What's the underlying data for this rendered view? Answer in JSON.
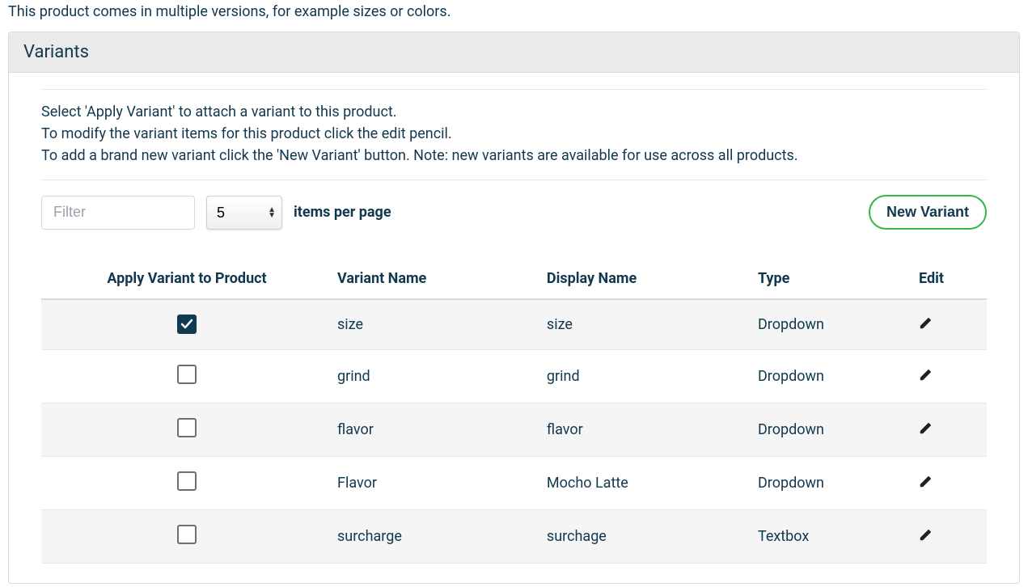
{
  "intro": "This product comes in multiple versions, for example sizes or colors.",
  "panel": {
    "title": "Variants",
    "instructions": {
      "line1": "Select 'Apply Variant' to attach a variant to this product.",
      "line2": "To modify the variant items for this product click the edit pencil.",
      "line3": "To add a brand new variant click the 'New Variant' button. Note: new variants are available for use across all products."
    },
    "controls": {
      "filter_placeholder": "Filter",
      "items_per_page_value": "5",
      "items_per_page_label": "items per page",
      "new_variant_label": "New Variant"
    },
    "table": {
      "headers": {
        "apply": "Apply Variant to Product",
        "variant_name": "Variant Name",
        "display_name": "Display Name",
        "type": "Type",
        "edit": "Edit"
      },
      "rows": [
        {
          "applied": true,
          "variant_name": "size",
          "display_name": "size",
          "type": "Dropdown"
        },
        {
          "applied": false,
          "variant_name": "grind",
          "display_name": "grind",
          "type": "Dropdown"
        },
        {
          "applied": false,
          "variant_name": "flavor",
          "display_name": "flavor",
          "type": "Dropdown"
        },
        {
          "applied": false,
          "variant_name": "Flavor",
          "display_name": "Mocho Latte",
          "type": "Dropdown"
        },
        {
          "applied": false,
          "variant_name": "surcharge",
          "display_name": "surchage",
          "type": "Textbox"
        }
      ]
    }
  },
  "colors": {
    "text_primary": "#11384f",
    "accent_green": "#38b54a",
    "checkbox_fill": "#0f3a52",
    "row_alt_bg": "#f5f5f5"
  }
}
